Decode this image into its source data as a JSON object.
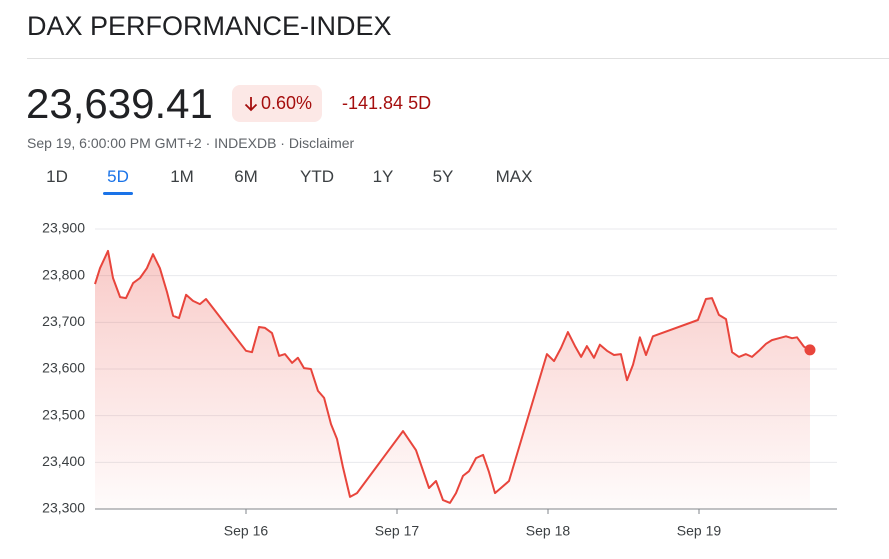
{
  "header": {
    "title": "DAX PERFORMANCE-INDEX",
    "price": "23,639.41",
    "change_percent": "0.60%",
    "change_value": "-141.84",
    "change_period": "5D",
    "timestamp": "Sep 19, 6:00:00 PM GMT+2",
    "exchange": "INDEXDB",
    "disclaimer": "Disclaimer"
  },
  "tabs": {
    "items": [
      "1D",
      "5D",
      "1M",
      "6M",
      "YTD",
      "1Y",
      "5Y",
      "MAX"
    ],
    "active_index": 1
  },
  "chart_data": {
    "type": "line",
    "x": [
      0,
      0.033,
      0.086,
      0.119,
      0.166,
      0.205,
      0.252,
      0.298,
      0.344,
      0.384,
      0.43,
      0.477,
      0.517,
      0.556,
      0.603,
      0.649,
      0.695,
      0.735,
      0.781,
      1.0,
      1.04,
      1.086,
      1.126,
      1.172,
      1.219,
      1.258,
      1.305,
      1.344,
      1.384,
      1.43,
      1.477,
      1.517,
      1.563,
      1.603,
      1.642,
      1.689,
      1.735,
      2.04,
      2.126,
      2.212,
      2.258,
      2.305,
      2.351,
      2.391,
      2.437,
      2.477,
      2.523,
      2.57,
      2.609,
      2.649,
      2.742,
      2.993,
      3.04,
      3.086,
      3.132,
      3.179,
      3.219,
      3.258,
      3.305,
      3.344,
      3.391,
      3.437,
      3.483,
      3.523,
      3.563,
      3.609,
      3.649,
      3.695,
      3.993,
      4.046,
      4.086,
      4.132,
      4.179,
      4.219,
      4.265,
      4.311,
      4.351,
      4.397,
      4.444,
      4.483,
      4.53,
      4.576,
      4.616,
      4.649,
      4.695,
      4.735
    ],
    "series": [
      {
        "color": "#e8453c",
        "values": [
          23782,
          23816,
          23853,
          23795,
          23754,
          23752,
          23784,
          23795,
          23816,
          23846,
          23816,
          23765,
          23714,
          23709,
          23759,
          23746,
          23739,
          23750,
          23731,
          23639,
          23636,
          23690,
          23688,
          23677,
          23628,
          23632,
          23613,
          23624,
          23602,
          23600,
          23553,
          23538,
          23482,
          23450,
          23390,
          23326,
          23334,
          23467,
          23426,
          23345,
          23360,
          23319,
          23313,
          23334,
          23371,
          23381,
          23409,
          23416,
          23379,
          23334,
          23360,
          23632,
          23617,
          23645,
          23679,
          23649,
          23626,
          23649,
          23624,
          23652,
          23639,
          23630,
          23632,
          23576,
          23609,
          23668,
          23630,
          23670,
          23705,
          23750,
          23752,
          23716,
          23707,
          23636,
          23626,
          23632,
          23626,
          23639,
          23654,
          23662,
          23666,
          23670,
          23666,
          23668,
          23648,
          23641
        ]
      }
    ],
    "xlim": [
      0,
      4.914
    ],
    "xticks": [
      {
        "value": 1,
        "label": "Sep 16"
      },
      {
        "value": 2,
        "label": "Sep 17"
      },
      {
        "value": 3,
        "label": "Sep 18"
      },
      {
        "value": 4,
        "label": "Sep 19"
      }
    ],
    "ylim": [
      23300,
      23900
    ],
    "yticks": [
      {
        "value": 23300,
        "label": "23,300"
      },
      {
        "value": 23400,
        "label": "23,400"
      },
      {
        "value": 23500,
        "label": "23,500"
      },
      {
        "value": 23600,
        "label": "23,600"
      },
      {
        "value": 23700,
        "label": "23,700"
      },
      {
        "value": 23800,
        "label": "23,800"
      },
      {
        "value": 23900,
        "label": "23,900"
      }
    ],
    "grid": true
  }
}
